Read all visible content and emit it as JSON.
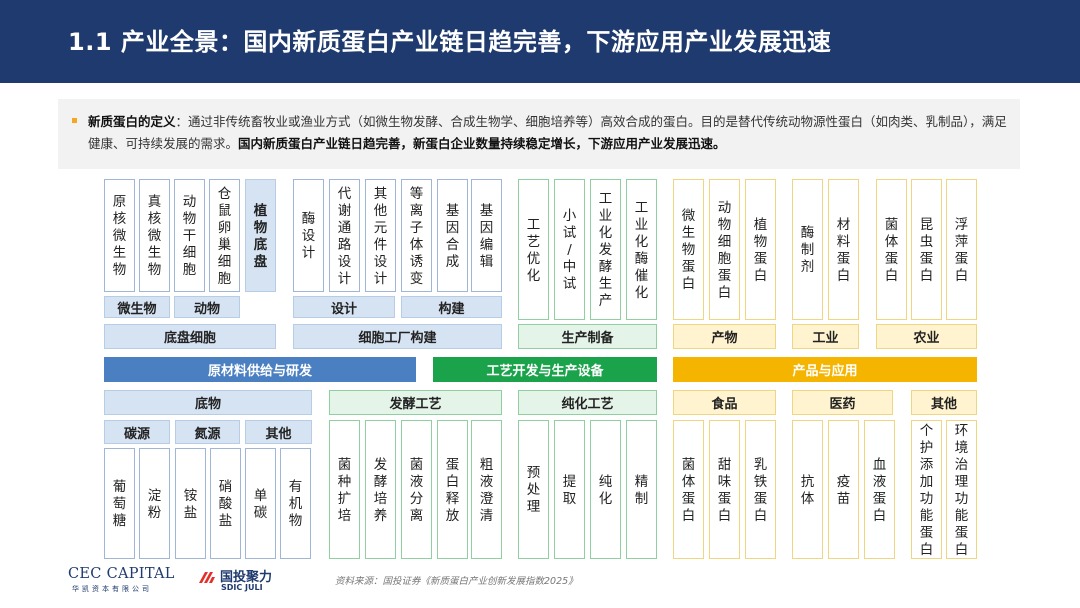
{
  "header": {
    "title": "1.1 产业全景：国内新质蛋白产业链日趋完善，下游应用产业发展迅速"
  },
  "definition": {
    "term": "新质蛋白的定义",
    "body": "：通过非传统畜牧业或渔业方式（如微生物发酵、合成生物学、细胞培养等）高效合成的蛋白。目的是替代传统动物源性蛋白（如肉类、乳制品），满足健康、可持续发展的需求。",
    "emphasis": "国内新质蛋白产业链日趋完善，新蛋白企业数量持续稳定增长，下游应用产业发展迅速。"
  },
  "upstream": {
    "bar": "原材料供给与研发",
    "cells_group": "底盘细胞",
    "cells_sub": [
      "微生物",
      "动物"
    ],
    "cells_items": [
      "原核微生物",
      "真核微生物",
      "动物干细胞",
      "仓鼠卵巢细胞",
      "植物底盘"
    ],
    "factory_group": "细胞工厂构建",
    "factory_sub": [
      "设计",
      "构建"
    ],
    "factory_items": [
      "酶设计",
      "代谢通路设计",
      "其他元件设计",
      "等离子体诱变",
      "基因合成",
      "基因编辑"
    ],
    "substrate_group": "底物",
    "substrate_sub": [
      "碳源",
      "氮源",
      "其他"
    ],
    "substrate_items": [
      "葡萄糖",
      "淀粉",
      "铵盐",
      "硝酸盐",
      "单碳",
      "有机物"
    ]
  },
  "midstream": {
    "bar": "工艺开发与生产设备",
    "production_group": "生产制备",
    "production_items": [
      "工艺优化",
      "小试/中试",
      "工业化发酵生产",
      "工业化酶催化"
    ],
    "ferment_group": "发酵工艺",
    "ferment_items": [
      "菌种扩培",
      "发酵培养",
      "菌液分离",
      "蛋白释放",
      "粗液澄清"
    ],
    "purify_group": "纯化工艺",
    "purify_items": [
      "预处理",
      "提取",
      "纯化",
      "精制"
    ]
  },
  "downstream": {
    "bar": "产品与应用",
    "product_group": "产物",
    "product_items": [
      "微生物蛋白",
      "动物细胞蛋白",
      "植物蛋白"
    ],
    "industry_group": "工业",
    "industry_items": [
      "酶制剂",
      "材料蛋白"
    ],
    "agri_group": "农业",
    "agri_items": [
      "菌体蛋白",
      "昆虫蛋白",
      "浮萍蛋白"
    ],
    "food_group": "食品",
    "food_items": [
      "菌体蛋白",
      "甜味蛋白",
      "乳铁蛋白"
    ],
    "medicine_group": "医药",
    "medicine_items": [
      "抗体",
      "疫苗",
      "血液蛋白"
    ],
    "other_group": "其他",
    "other_items": [
      "个护添加功能蛋白",
      "环境治理功能蛋白"
    ]
  },
  "footer": {
    "logo1": "CEC CAPITAL",
    "logo1_sub": "华凯资本有限公司",
    "logo2": "国投聚力",
    "logo2_sub": "SDIC JULI",
    "source": "资料来源：国投证券《新质蛋白产业创新发展指数2025》"
  }
}
